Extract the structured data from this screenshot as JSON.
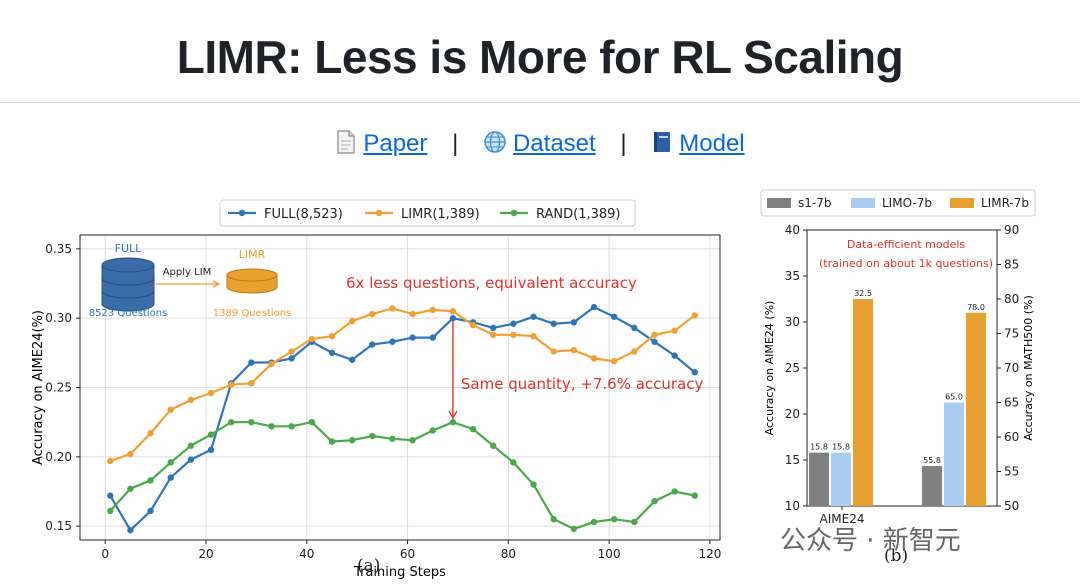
{
  "page": {
    "title": "LIMR: Less is More for RL Scaling",
    "links": [
      {
        "label": "Paper",
        "icon": "document-icon"
      },
      {
        "label": "Dataset",
        "icon": "globe-icon"
      },
      {
        "label": "Model",
        "icon": "book-icon"
      }
    ],
    "separator": "|",
    "watermark": "公众号 · 新智元"
  },
  "colors": {
    "full": "#2e75b6",
    "limr": "#f0a030",
    "rand": "#4aa84a",
    "s1": "#808080",
    "limo": "#a8cdf0",
    "limr_bar": "#e8a030",
    "annot": "#e03030"
  },
  "chart_data": [
    {
      "type": "line",
      "caption": "(a)",
      "xlabel": "Training Steps",
      "ylabel": "Accuracy on AIME24(%)",
      "xlim": [
        -5,
        122
      ],
      "ylim": [
        0.14,
        0.36
      ],
      "xticks": [
        0,
        20,
        40,
        60,
        80,
        100,
        120
      ],
      "yticks": [
        0.15,
        0.2,
        0.25,
        0.3,
        0.35
      ],
      "legend_position": "top-center",
      "annotations": {
        "top": "6x less questions, equivalent accuracy",
        "mid": "Same quantity, +7.6% accuracy",
        "inset_full": "FULL",
        "inset_full_count": "8523 Questions",
        "inset_arrow": "Apply LIM",
        "inset_limr": "LIMR",
        "inset_limr_count": "1389 Questions"
      },
      "x": [
        1,
        5,
        9,
        13,
        17,
        21,
        25,
        29,
        33,
        37,
        41,
        45,
        49,
        53,
        57,
        61,
        65,
        69,
        73,
        77,
        81,
        85,
        89,
        93,
        97,
        101,
        105,
        109,
        113,
        117
      ],
      "series": [
        {
          "name": "FULL(8,523)",
          "values": [
            0.172,
            0.147,
            0.161,
            0.185,
            0.198,
            0.205,
            0.253,
            0.268,
            0.268,
            0.271,
            0.283,
            0.275,
            0.27,
            0.281,
            0.283,
            0.286,
            0.286,
            0.3,
            0.297,
            0.293,
            0.296,
            0.301,
            0.296,
            0.297,
            0.308,
            0.301,
            0.293,
            0.283,
            0.273,
            0.261
          ]
        },
        {
          "name": "LIMR(1,389)",
          "values": [
            0.197,
            0.202,
            0.217,
            0.234,
            0.241,
            0.246,
            0.252,
            0.253,
            0.267,
            0.276,
            0.285,
            0.287,
            0.298,
            0.303,
            0.307,
            0.303,
            0.306,
            0.305,
            0.295,
            0.288,
            0.288,
            0.287,
            0.276,
            0.277,
            0.271,
            0.269,
            0.276,
            0.288,
            0.291,
            0.302
          ]
        },
        {
          "name": "RAND(1,389)",
          "values": [
            0.161,
            0.177,
            0.183,
            0.196,
            0.208,
            0.216,
            0.225,
            0.225,
            0.222,
            0.222,
            0.225,
            0.211,
            0.212,
            0.215,
            0.213,
            0.212,
            0.219,
            0.225,
            0.22,
            0.208,
            0.196,
            0.18,
            0.155,
            0.148,
            0.153,
            0.155,
            0.153,
            0.168,
            0.175,
            0.172
          ]
        }
      ]
    },
    {
      "type": "bar",
      "caption": "(b)",
      "categories": [
        "AIME24",
        ""
      ],
      "ylabel": "Accuracy on AIME24 (%)",
      "y2label": "Accuracy on MATH500 (%)",
      "ylim": [
        10,
        40
      ],
      "y2lim": [
        50,
        90
      ],
      "yticks": [
        10,
        15,
        20,
        25,
        30,
        35,
        40
      ],
      "y2ticks": [
        50,
        55,
        60,
        65,
        70,
        75,
        80,
        85,
        90
      ],
      "legend_position": "top",
      "annotation": [
        "Data-efficient models",
        "(trained on about 1k questions)"
      ],
      "series": [
        {
          "name": "s1-7b",
          "values": [
            15.8,
            55.8
          ],
          "labels": [
            "15.8",
            "55.8"
          ]
        },
        {
          "name": "LIMO-7b",
          "values": [
            15.8,
            65.0
          ],
          "labels": [
            "15.8",
            "65.0"
          ]
        },
        {
          "name": "LIMR-7b",
          "values": [
            32.5,
            78.0
          ],
          "labels": [
            "32.5",
            "78.0"
          ]
        }
      ]
    }
  ]
}
